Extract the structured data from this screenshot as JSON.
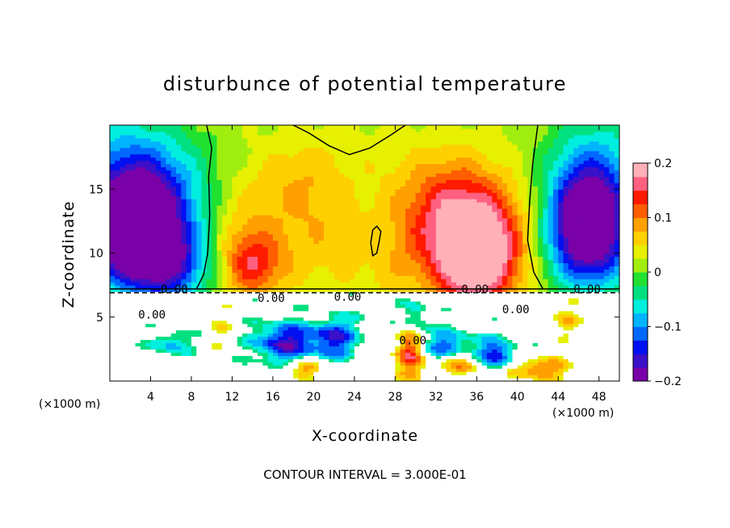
{
  "chart_data": {
    "type": "heatmap",
    "title": "disturbunce of potential temperature",
    "xlabel": "X-coordinate",
    "ylabel": "Z-coordinate",
    "x_unit_left": "(×1000 m)",
    "x_unit_right": "(×1000 m)",
    "xlim": [
      0,
      50
    ],
    "ylim": [
      0,
      20
    ],
    "x_ticks": [
      "4",
      "8",
      "12",
      "16",
      "20",
      "24",
      "28",
      "32",
      "36",
      "40",
      "44",
      "48"
    ],
    "x_tick_values": [
      4,
      8,
      12,
      16,
      20,
      24,
      28,
      32,
      36,
      40,
      44,
      48
    ],
    "y_ticks": [
      "5",
      "10",
      "15"
    ],
    "y_tick_values": [
      5,
      10,
      15
    ],
    "colorbar": {
      "range": [
        -0.2,
        0.2
      ],
      "tick_labels": [
        "0.2",
        "0.1",
        "0",
        "−0.1",
        "−0.2"
      ],
      "tick_values": [
        0.2,
        0.1,
        0,
        -0.1,
        -0.2
      ],
      "colors": [
        "#7a00a8",
        "#3a10c8",
        "#0010f0",
        "#0068ff",
        "#00b4ff",
        "#00eedd",
        "#00e080",
        "#20e030",
        "#a0ee10",
        "#e6f000",
        "#ffd000",
        "#ffa000",
        "#ff5e00",
        "#ff1a00",
        "#ff6080",
        "#ffb0b8"
      ]
    },
    "contour_labels": [
      "0.00",
      "0.00",
      "0.00",
      "0.00",
      "0.00",
      "0.00",
      "0.00",
      "0.00"
    ],
    "interface_height": 7,
    "blobs": [
      {
        "x": 2,
        "z": 11.5,
        "v": -0.2,
        "rx": 4,
        "rz": 4
      },
      {
        "x": 4,
        "z": 13.5,
        "v": -0.14,
        "rx": 6,
        "rz": 5
      },
      {
        "x": 1,
        "z": 17,
        "v": -0.06,
        "rx": 6,
        "rz": 5
      },
      {
        "x": 6,
        "z": 9,
        "v": -0.12,
        "rx": 4,
        "rz": 3
      },
      {
        "x": 47,
        "z": 11,
        "v": -0.19,
        "rx": 4,
        "rz": 4
      },
      {
        "x": 47,
        "z": 14,
        "v": -0.14,
        "rx": 4,
        "rz": 4
      },
      {
        "x": 48,
        "z": 18,
        "v": -0.05,
        "rx": 5,
        "rz": 4
      },
      {
        "x": 36,
        "z": 9,
        "v": 0.17,
        "rx": 4,
        "rz": 3.5
      },
      {
        "x": 36,
        "z": 12,
        "v": 0.12,
        "rx": 5,
        "rz": 4
      },
      {
        "x": 33,
        "z": 14,
        "v": 0.08,
        "rx": 5,
        "rz": 4
      },
      {
        "x": 14,
        "z": 9,
        "v": 0.11,
        "rx": 3,
        "rz": 2.5
      },
      {
        "x": 13,
        "z": 12,
        "v": 0.06,
        "rx": 4,
        "rz": 4
      },
      {
        "x": 20,
        "z": 12,
        "v": 0.05,
        "rx": 4,
        "rz": 5
      },
      {
        "x": 28,
        "z": 10,
        "v": 0.05,
        "rx": 5,
        "rz": 4
      },
      {
        "x": 24,
        "z": 17,
        "v": 0.02,
        "rx": 8,
        "rz": 3
      },
      {
        "x": 26,
        "z": 11,
        "v": -0.01,
        "rx": 2,
        "rz": 1.5
      },
      {
        "x": 18,
        "z": 16,
        "v": 0.03,
        "rx": 4,
        "rz": 3
      }
    ],
    "bottom_swirls": [
      {
        "x": 17,
        "z": 3,
        "v": -0.16,
        "rx": 3,
        "rz": 1.6
      },
      {
        "x": 22,
        "z": 3.4,
        "v": -0.14,
        "rx": 2.5,
        "rz": 1.6
      },
      {
        "x": 33,
        "z": 2.5,
        "v": -0.13,
        "rx": 3,
        "rz": 1.5
      },
      {
        "x": 38,
        "z": 2,
        "v": -0.15,
        "rx": 2,
        "rz": 1.2
      },
      {
        "x": 29.5,
        "z": 2.4,
        "v": 0.15,
        "rx": 1.5,
        "rz": 2
      },
      {
        "x": 34,
        "z": 1.4,
        "v": 0.13,
        "rx": 3,
        "rz": 1
      },
      {
        "x": 26,
        "z": 5.5,
        "v": -0.04,
        "rx": 1.5,
        "rz": 1
      },
      {
        "x": 42,
        "z": 1,
        "v": 0.12,
        "rx": 3,
        "rz": 0.8
      },
      {
        "x": 11,
        "z": 4,
        "v": 0.03,
        "rx": 1.5,
        "rz": 1.2
      },
      {
        "x": 30,
        "z": 5,
        "v": -0.09,
        "rx": 1.4,
        "rz": 1.4
      },
      {
        "x": 19,
        "z": 1.0,
        "v": 0.1,
        "rx": 2,
        "rz": 0.7
      },
      {
        "x": 6,
        "z": 3,
        "v": -0.09,
        "rx": 2,
        "rz": 1
      },
      {
        "x": 45,
        "z": 4.8,
        "v": 0.05,
        "rx": 1.6,
        "rz": 1.2
      }
    ],
    "annotation": "CONTOUR INTERVAL = 3.000E-01"
  }
}
